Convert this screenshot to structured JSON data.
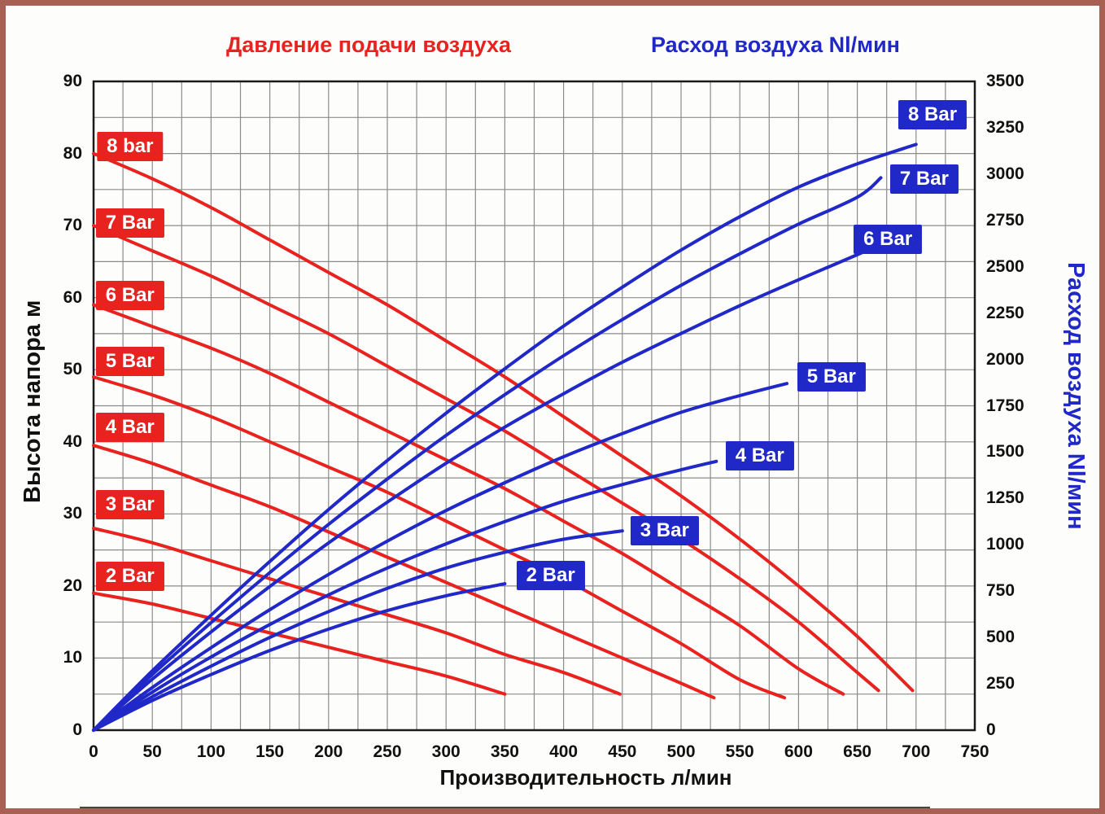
{
  "chart_data": {
    "type": "line",
    "titles": {
      "red": "Давление подачи воздуха",
      "blue": "Расход воздуха Nl/мин"
    },
    "x_axis": {
      "label": "Производительность л/мин",
      "min": 0,
      "max": 750,
      "grid_step": 25,
      "ticks": [
        0,
        50,
        100,
        150,
        200,
        250,
        300,
        350,
        400,
        450,
        500,
        550,
        600,
        650,
        700,
        750
      ]
    },
    "y_left": {
      "label": "Высота напора м",
      "min": 0,
      "max": 90,
      "grid_step": 5,
      "ticks": [
        0,
        10,
        20,
        30,
        40,
        50,
        60,
        70,
        80,
        90
      ]
    },
    "y_right": {
      "label": "Расход воздуха Nl/мин",
      "min": 0,
      "max": 3500,
      "ticks": [
        0,
        250,
        500,
        750,
        1000,
        1250,
        1500,
        1750,
        2000,
        2250,
        2500,
        2750,
        3000,
        3250,
        3500
      ]
    },
    "colors": {
      "red": "#e8231f",
      "blue": "#2028c8",
      "grid": "#8b8b8b",
      "frame": "#1a1a1a",
      "border": "#a86052"
    },
    "grid": true,
    "legend_position": "inline-labels",
    "series": [
      {
        "label": "8 bar",
        "group": "head",
        "axis": "left",
        "color_key": "red",
        "label_at": {
          "x": 31,
          "y": 81
        },
        "points": [
          [
            0,
            80
          ],
          [
            50,
            76.5
          ],
          [
            100,
            72.5
          ],
          [
            150,
            68
          ],
          [
            200,
            63.5
          ],
          [
            250,
            59
          ],
          [
            300,
            54
          ],
          [
            350,
            49
          ],
          [
            400,
            43.5
          ],
          [
            450,
            38
          ],
          [
            500,
            32.5
          ],
          [
            550,
            26.5
          ],
          [
            600,
            20
          ],
          [
            650,
            13
          ],
          [
            697,
            5.5
          ]
        ]
      },
      {
        "label": "7 Bar",
        "group": "head",
        "axis": "left",
        "color_key": "red",
        "label_at": {
          "x": 31,
          "y": 70.3
        },
        "points": [
          [
            0,
            70
          ],
          [
            50,
            66.5
          ],
          [
            100,
            63
          ],
          [
            150,
            59
          ],
          [
            200,
            55
          ],
          [
            250,
            50.5
          ],
          [
            300,
            46
          ],
          [
            350,
            41.5
          ],
          [
            400,
            36.5
          ],
          [
            450,
            31.5
          ],
          [
            500,
            26.5
          ],
          [
            550,
            21
          ],
          [
            600,
            15
          ],
          [
            650,
            8
          ],
          [
            668,
            5.5
          ]
        ]
      },
      {
        "label": "6 Bar",
        "group": "head",
        "axis": "left",
        "color_key": "red",
        "label_at": {
          "x": 31,
          "y": 60.3
        },
        "points": [
          [
            0,
            59
          ],
          [
            50,
            56
          ],
          [
            100,
            53
          ],
          [
            150,
            49.5
          ],
          [
            200,
            45.5
          ],
          [
            250,
            41.5
          ],
          [
            300,
            37.5
          ],
          [
            350,
            33.5
          ],
          [
            400,
            29
          ],
          [
            450,
            24.5
          ],
          [
            500,
            19.5
          ],
          [
            550,
            14.5
          ],
          [
            600,
            8.5
          ],
          [
            638,
            5
          ]
        ]
      },
      {
        "label": "5 Bar",
        "group": "head",
        "axis": "left",
        "color_key": "red",
        "label_at": {
          "x": 31,
          "y": 51.2
        },
        "points": [
          [
            0,
            49
          ],
          [
            50,
            46.5
          ],
          [
            100,
            43.5
          ],
          [
            150,
            40
          ],
          [
            200,
            36.5
          ],
          [
            250,
            33
          ],
          [
            300,
            29
          ],
          [
            350,
            25
          ],
          [
            400,
            21
          ],
          [
            450,
            16.5
          ],
          [
            500,
            12
          ],
          [
            550,
            7
          ],
          [
            588,
            4.5
          ]
        ]
      },
      {
        "label": "4 Bar",
        "group": "head",
        "axis": "left",
        "color_key": "red",
        "label_at": {
          "x": 31,
          "y": 42
        },
        "points": [
          [
            0,
            39.5
          ],
          [
            50,
            37
          ],
          [
            100,
            34
          ],
          [
            150,
            31
          ],
          [
            200,
            27.5
          ],
          [
            250,
            24
          ],
          [
            300,
            20.5
          ],
          [
            350,
            17
          ],
          [
            400,
            13.5
          ],
          [
            450,
            10
          ],
          [
            500,
            6.5
          ],
          [
            528,
            4.5
          ]
        ]
      },
      {
        "label": "3 Bar",
        "group": "head",
        "axis": "left",
        "color_key": "red",
        "label_at": {
          "x": 31,
          "y": 31.3
        },
        "points": [
          [
            0,
            28
          ],
          [
            50,
            26
          ],
          [
            100,
            23.5
          ],
          [
            150,
            21
          ],
          [
            200,
            18.5
          ],
          [
            250,
            16
          ],
          [
            300,
            13.5
          ],
          [
            350,
            10.5
          ],
          [
            400,
            8
          ],
          [
            448,
            5
          ]
        ]
      },
      {
        "label": "2 Bar",
        "group": "head",
        "axis": "left",
        "color_key": "red",
        "label_at": {
          "x": 31,
          "y": 21.3
        },
        "points": [
          [
            0,
            19
          ],
          [
            50,
            17.5
          ],
          [
            100,
            15.5
          ],
          [
            150,
            13.5
          ],
          [
            200,
            11.5
          ],
          [
            250,
            9.5
          ],
          [
            300,
            7.5
          ],
          [
            350,
            5
          ]
        ]
      },
      {
        "label": "2 Bar",
        "group": "airflow",
        "axis": "right",
        "color_key": "blue",
        "label_at": {
          "x": 389,
          "y": 835
        },
        "points": [
          [
            0,
            0
          ],
          [
            50,
            160
          ],
          [
            100,
            300
          ],
          [
            150,
            430
          ],
          [
            200,
            545
          ],
          [
            250,
            645
          ],
          [
            300,
            725
          ],
          [
            350,
            790
          ]
        ]
      },
      {
        "label": "3 Bar",
        "group": "airflow",
        "axis": "right",
        "color_key": "blue",
        "label_at": {
          "x": 486,
          "y": 1075
        },
        "points": [
          [
            0,
            0
          ],
          [
            50,
            180
          ],
          [
            100,
            345
          ],
          [
            150,
            500
          ],
          [
            200,
            640
          ],
          [
            250,
            765
          ],
          [
            300,
            875
          ],
          [
            350,
            960
          ],
          [
            400,
            1030
          ],
          [
            450,
            1075
          ]
        ]
      },
      {
        "label": "4 Bar",
        "group": "airflow",
        "axis": "right",
        "color_key": "blue",
        "label_at": {
          "x": 567,
          "y": 1480
        },
        "points": [
          [
            0,
            0
          ],
          [
            50,
            205
          ],
          [
            100,
            395
          ],
          [
            150,
            570
          ],
          [
            200,
            730
          ],
          [
            250,
            875
          ],
          [
            300,
            1005
          ],
          [
            350,
            1125
          ],
          [
            400,
            1235
          ],
          [
            450,
            1325
          ],
          [
            500,
            1405
          ],
          [
            530,
            1450
          ]
        ]
      },
      {
        "label": "5 Bar",
        "group": "airflow",
        "axis": "right",
        "color_key": "blue",
        "label_at": {
          "x": 628,
          "y": 1905
        },
        "points": [
          [
            0,
            0
          ],
          [
            50,
            230
          ],
          [
            100,
            445
          ],
          [
            150,
            650
          ],
          [
            200,
            840
          ],
          [
            250,
            1020
          ],
          [
            300,
            1185
          ],
          [
            350,
            1335
          ],
          [
            400,
            1475
          ],
          [
            450,
            1600
          ],
          [
            500,
            1715
          ],
          [
            550,
            1805
          ],
          [
            590,
            1870
          ]
        ]
      },
      {
        "label": "6 Bar",
        "group": "airflow",
        "axis": "right",
        "color_key": "blue",
        "label_at": {
          "x": 676,
          "y": 2650
        },
        "points": [
          [
            0,
            0
          ],
          [
            50,
            275
          ],
          [
            100,
            530
          ],
          [
            150,
            775
          ],
          [
            200,
            1010
          ],
          [
            250,
            1230
          ],
          [
            300,
            1440
          ],
          [
            350,
            1635
          ],
          [
            400,
            1815
          ],
          [
            450,
            1985
          ],
          [
            500,
            2140
          ],
          [
            550,
            2290
          ],
          [
            600,
            2430
          ],
          [
            650,
            2565
          ],
          [
            668,
            2620
          ]
        ]
      },
      {
        "label": "7 Bar",
        "group": "airflow",
        "axis": "right",
        "color_key": "blue",
        "label_at": {
          "x": 707,
          "y": 2975
        },
        "points": [
          [
            0,
            0
          ],
          [
            50,
            300
          ],
          [
            100,
            580
          ],
          [
            150,
            850
          ],
          [
            200,
            1110
          ],
          [
            250,
            1355
          ],
          [
            300,
            1590
          ],
          [
            350,
            1810
          ],
          [
            400,
            2020
          ],
          [
            450,
            2215
          ],
          [
            500,
            2400
          ],
          [
            550,
            2570
          ],
          [
            600,
            2730
          ],
          [
            650,
            2875
          ],
          [
            670,
            2980
          ]
        ]
      },
      {
        "label": "8 Bar",
        "group": "airflow",
        "axis": "right",
        "color_key": "blue",
        "label_at": {
          "x": 714,
          "y": 3320
        },
        "points": [
          [
            0,
            0
          ],
          [
            50,
            320
          ],
          [
            100,
            620
          ],
          [
            150,
            910
          ],
          [
            200,
            1190
          ],
          [
            250,
            1455
          ],
          [
            300,
            1710
          ],
          [
            350,
            1950
          ],
          [
            400,
            2180
          ],
          [
            450,
            2390
          ],
          [
            500,
            2590
          ],
          [
            550,
            2770
          ],
          [
            600,
            2930
          ],
          [
            650,
            3055
          ],
          [
            700,
            3160
          ]
        ]
      }
    ]
  }
}
